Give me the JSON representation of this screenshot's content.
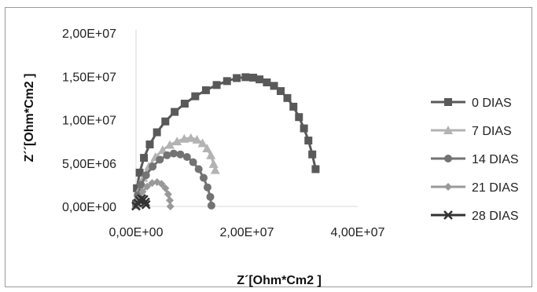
{
  "chart_data": {
    "type": "scatter",
    "xlabel": "Z´[Ohm*Cm2 ]",
    "ylabel": "Z´´[Ohm*Cm2 ]",
    "xlim": [
      0,
      40000000
    ],
    "ylim": [
      0,
      20000000
    ],
    "x_ticks": [
      {
        "value": 0,
        "label": "0,00E+00"
      },
      {
        "value": 20000000,
        "label": "2,00E+07"
      },
      {
        "value": 40000000,
        "label": "4,00E+07"
      }
    ],
    "y_ticks": [
      {
        "value": 0,
        "label": "0,00E+00"
      },
      {
        "value": 5000000,
        "label": "5,00E+06"
      },
      {
        "value": 10000000,
        "label": "1,00E+07"
      },
      {
        "value": 15000000,
        "label": "1,50E+07"
      },
      {
        "value": 20000000,
        "label": "2,00E+07"
      }
    ],
    "grid": false,
    "legend_position": "right",
    "series": [
      {
        "name": "0 DIAS",
        "marker": "square",
        "color": "#595959",
        "points": [
          [
            0,
            300000
          ],
          [
            166000,
            2100000
          ],
          [
            650000,
            3900000
          ],
          [
            1430000,
            5600000
          ],
          [
            2480000,
            7150000
          ],
          [
            3780000,
            8550000
          ],
          [
            5290000,
            9800000
          ],
          [
            6970000,
            10900000
          ],
          [
            8780000,
            11850000
          ],
          [
            10680000,
            12700000
          ],
          [
            12620000,
            13400000
          ],
          [
            14550000,
            14000000
          ],
          [
            16420000,
            14450000
          ],
          [
            18170000,
            14800000
          ],
          [
            19760000,
            14900000
          ],
          [
            21140000,
            14850000
          ],
          [
            22280000,
            14650000
          ],
          [
            23600000,
            14300000
          ],
          [
            24900000,
            13900000
          ],
          [
            26100000,
            13300000
          ],
          [
            27300000,
            12500000
          ],
          [
            28400000,
            11500000
          ],
          [
            29400000,
            10300000
          ],
          [
            30300000,
            9000000
          ],
          [
            31100000,
            7600000
          ],
          [
            31800000,
            6000000
          ],
          [
            32400000,
            4300000
          ]
        ]
      },
      {
        "name": "7 DIAS",
        "marker": "triangle",
        "color": "#b3b3b3",
        "points": [
          [
            0,
            200000
          ],
          [
            500000,
            1800000
          ],
          [
            1300000,
            3300000
          ],
          [
            2300000,
            4600000
          ],
          [
            3500000,
            5700000
          ],
          [
            4800000,
            6500000
          ],
          [
            6100000,
            7100000
          ],
          [
            7400000,
            7500000
          ],
          [
            8700000,
            7800000
          ],
          [
            9900000,
            7900000
          ],
          [
            11000000,
            7700000
          ],
          [
            12000000,
            7300000
          ],
          [
            12800000,
            6700000
          ],
          [
            13500000,
            5900000
          ],
          [
            14000000,
            4900000
          ],
          [
            14300000,
            4200000
          ]
        ]
      },
      {
        "name": "14 DIAS",
        "marker": "circle",
        "color": "#737373",
        "points": [
          [
            0,
            200000
          ],
          [
            300000,
            1300000
          ],
          [
            900000,
            2500000
          ],
          [
            1800000,
            3600000
          ],
          [
            3000000,
            4600000
          ],
          [
            4300000,
            5400000
          ],
          [
            5600000,
            5900000
          ],
          [
            6800000,
            6100000
          ],
          [
            8000000,
            6000000
          ],
          [
            9200000,
            5700000
          ],
          [
            10300000,
            5100000
          ],
          [
            11300000,
            4300000
          ],
          [
            12200000,
            3300000
          ],
          [
            12900000,
            2200000
          ],
          [
            13400000,
            1100000
          ],
          [
            13600000,
            100000
          ]
        ]
      },
      {
        "name": "21 DIAS",
        "marker": "diamond",
        "color": "#999999",
        "points": [
          [
            0,
            100000
          ],
          [
            500000,
            900000
          ],
          [
            1200000,
            1700000
          ],
          [
            2000000,
            2300000
          ],
          [
            2900000,
            2700000
          ],
          [
            3800000,
            2800000
          ],
          [
            4600000,
            2600000
          ],
          [
            5300000,
            2100000
          ],
          [
            5800000,
            1400000
          ],
          [
            6100000,
            700000
          ],
          [
            6200000,
            0
          ]
        ]
      },
      {
        "name": "28 DIAS",
        "marker": "x",
        "color": "#333333",
        "points": [
          [
            0,
            50000
          ],
          [
            300000,
            400000
          ],
          [
            600000,
            700000
          ],
          [
            1000000,
            900000
          ],
          [
            1400000,
            800000
          ],
          [
            1700000,
            500000
          ],
          [
            1800000,
            200000
          ]
        ]
      }
    ]
  }
}
